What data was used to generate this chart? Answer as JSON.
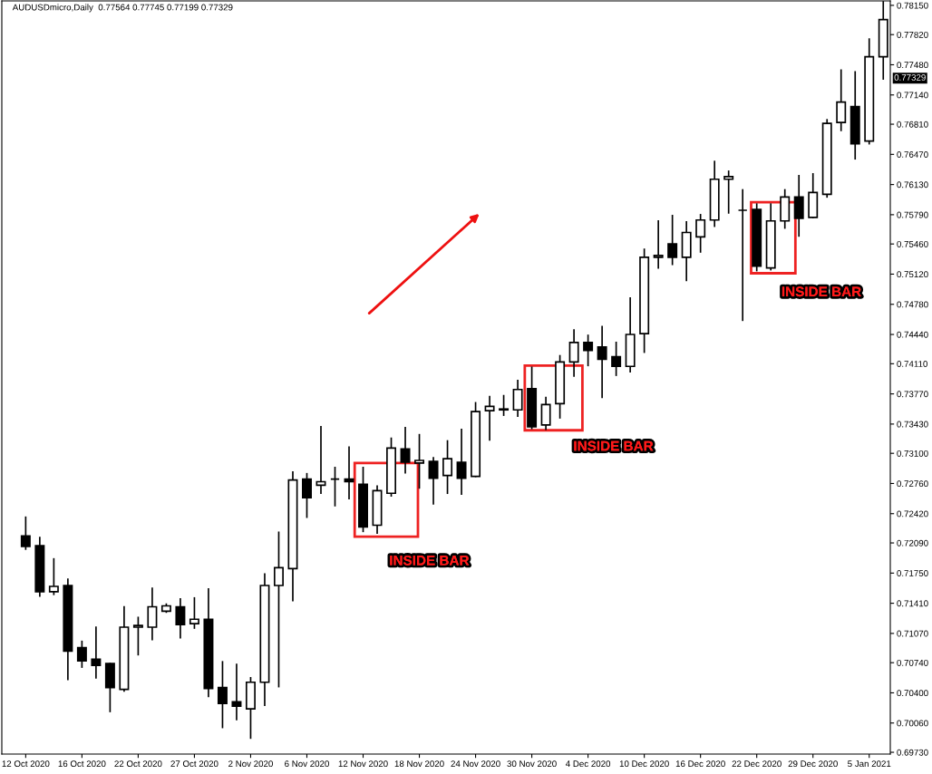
{
  "chart_data": {
    "type": "candlestick",
    "title": "AUDUSDmicro,Daily  0.77564 0.77745 0.77199 0.77329",
    "categories": [
      "12 Oct 2020",
      null,
      null,
      null,
      "16 Oct 2020",
      null,
      null,
      null,
      "22 Oct 2020",
      null,
      null,
      null,
      "27 Oct 2020",
      null,
      null,
      null,
      "2 Nov 2020",
      null,
      null,
      null,
      "6 Nov 2020",
      null,
      null,
      null,
      "12 Nov 2020",
      null,
      null,
      null,
      "18 Nov 2020",
      null,
      null,
      null,
      "24 Nov 2020",
      null,
      null,
      null,
      "30 Nov 2020",
      null,
      null,
      null,
      "4 Dec 2020",
      null,
      null,
      null,
      "10 Dec 2020",
      null,
      null,
      null,
      "16 Dec 2020",
      null,
      null,
      null,
      "22 Dec 2020",
      null,
      null,
      null,
      "29 Dec 2020",
      null,
      null,
      null,
      "5 Jan 2021",
      null
    ],
    "ohlc": [
      [
        0.7217,
        0.7238,
        0.7202,
        0.7205
      ],
      [
        0.7206,
        0.7215,
        0.7149,
        0.7154
      ],
      [
        0.7154,
        0.7191,
        0.7151,
        0.716
      ],
      [
        0.7161,
        0.7168,
        0.7055,
        0.7087
      ],
      [
        0.7091,
        0.7098,
        0.7069,
        0.7076
      ],
      [
        0.7078,
        0.7114,
        0.7057,
        0.7071
      ],
      [
        0.7073,
        0.7073,
        0.7019,
        0.7046
      ],
      [
        0.7044,
        0.7137,
        0.7042,
        0.7114
      ],
      [
        0.7114,
        0.7125,
        0.7083,
        0.7116
      ],
      [
        0.7114,
        0.7158,
        0.71,
        0.7137
      ],
      [
        0.7132,
        0.714,
        0.7131,
        0.7138
      ],
      [
        0.7137,
        0.7146,
        0.7102,
        0.7117
      ],
      [
        0.7118,
        0.7147,
        0.7113,
        0.7123
      ],
      [
        0.7123,
        0.7157,
        0.7036,
        0.7045
      ],
      [
        0.7046,
        0.7075,
        0.7001,
        0.7028
      ],
      [
        0.703,
        0.7072,
        0.701,
        0.7025
      ],
      [
        0.7022,
        0.7057,
        0.6989,
        0.7052
      ],
      [
        0.7052,
        0.7174,
        0.7026,
        0.7161
      ],
      [
        0.7161,
        0.7221,
        0.7047,
        0.7181
      ],
      [
        0.718,
        0.7289,
        0.7144,
        0.728
      ],
      [
        0.7281,
        0.7287,
        0.7238,
        0.726
      ],
      [
        0.7274,
        0.734,
        0.7265,
        0.7278
      ],
      [
        0.7281,
        0.7294,
        0.7251,
        0.7281
      ],
      [
        0.7281,
        0.7317,
        0.7259,
        0.7278
      ],
      [
        0.7275,
        0.7294,
        0.7222,
        0.7227
      ],
      [
        0.7229,
        0.7273,
        0.722,
        0.7268
      ],
      [
        0.7265,
        0.7327,
        0.7262,
        0.7316
      ],
      [
        0.7315,
        0.7339,
        0.7288,
        0.73
      ],
      [
        0.7299,
        0.7331,
        0.7271,
        0.7302
      ],
      [
        0.7301,
        0.7305,
        0.7253,
        0.7282
      ],
      [
        0.7285,
        0.7324,
        0.7265,
        0.7304
      ],
      [
        0.73,
        0.7337,
        0.7264,
        0.7282
      ],
      [
        0.7284,
        0.7367,
        0.7284,
        0.7357
      ],
      [
        0.7358,
        0.7374,
        0.7325,
        0.7363
      ],
      [
        0.736,
        0.7375,
        0.7353,
        0.7359
      ],
      [
        0.7359,
        0.7392,
        0.7352,
        0.7382
      ],
      [
        0.7383,
        0.7407,
        0.7338,
        0.734
      ],
      [
        0.7342,
        0.7373,
        0.7337,
        0.7365
      ],
      [
        0.7366,
        0.742,
        0.735,
        0.7413
      ],
      [
        0.7413,
        0.7449,
        0.7397,
        0.7435
      ],
      [
        0.7435,
        0.7443,
        0.7409,
        0.7426
      ],
      [
        0.743,
        0.7453,
        0.7373,
        0.7416
      ],
      [
        0.7419,
        0.7435,
        0.7398,
        0.7408
      ],
      [
        0.7408,
        0.7485,
        0.7402,
        0.7444
      ],
      [
        0.7445,
        0.754,
        0.7424,
        0.7531
      ],
      [
        0.7531,
        0.7572,
        0.7519,
        0.7533
      ],
      [
        0.7546,
        0.7578,
        0.7523,
        0.7531
      ],
      [
        0.7531,
        0.7571,
        0.7505,
        0.7559
      ],
      [
        0.7554,
        0.7579,
        0.7537,
        0.7573
      ],
      [
        0.7573,
        0.7639,
        0.7566,
        0.7619
      ],
      [
        0.7619,
        0.7628,
        0.7581,
        0.7622
      ],
      [
        0.7584,
        0.7607,
        0.746,
        0.7584
      ],
      [
        0.7585,
        0.7591,
        0.7516,
        0.7521
      ],
      [
        0.7519,
        0.7591,
        0.7517,
        0.7572
      ],
      [
        0.7572,
        0.7607,
        0.7564,
        0.7599
      ],
      [
        0.7599,
        0.7623,
        0.7555,
        0.7575
      ],
      [
        0.7576,
        0.7625,
        0.7576,
        0.7604
      ],
      [
        0.7602,
        0.7686,
        0.7599,
        0.7682
      ],
      [
        0.7683,
        0.7742,
        0.7674,
        0.7706
      ],
      [
        0.7701,
        0.774,
        0.7642,
        0.7659
      ],
      [
        0.7662,
        0.7777,
        0.7659,
        0.7757
      ],
      [
        0.7757,
        0.7819,
        0.7732,
        0.7799
      ]
    ],
    "ylim": [
      0.6971,
      0.782
    ],
    "yticks": [
      {
        "value": 0.7815,
        "label": "0.78150"
      },
      {
        "value": 0.7782,
        "label": "0.77820"
      },
      {
        "value": 0.7748,
        "label": "0.77480"
      },
      {
        "value": 0.7714,
        "label": "0.77140"
      },
      {
        "value": 0.7681,
        "label": "0.76810"
      },
      {
        "value": 0.7647,
        "label": "0.76470"
      },
      {
        "value": 0.7613,
        "label": "0.76130"
      },
      {
        "value": 0.7579,
        "label": "0.75790"
      },
      {
        "value": 0.7546,
        "label": "0.75460"
      },
      {
        "value": 0.7512,
        "label": "0.75120"
      },
      {
        "value": 0.7478,
        "label": "0.74780"
      },
      {
        "value": 0.7444,
        "label": "0.74440"
      },
      {
        "value": 0.7411,
        "label": "0.74110"
      },
      {
        "value": 0.7377,
        "label": "0.73770"
      },
      {
        "value": 0.7343,
        "label": "0.73430"
      },
      {
        "value": 0.731,
        "label": "0.73100"
      },
      {
        "value": 0.7276,
        "label": "0.72760"
      },
      {
        "value": 0.7242,
        "label": "0.72420"
      },
      {
        "value": 0.7209,
        "label": "0.72090"
      },
      {
        "value": 0.7175,
        "label": "0.71750"
      },
      {
        "value": 0.7141,
        "label": "0.71410"
      },
      {
        "value": 0.7107,
        "label": "0.71070"
      },
      {
        "value": 0.7074,
        "label": "0.70740"
      },
      {
        "value": 0.704,
        "label": "0.70400"
      },
      {
        "value": 0.7006,
        "label": "0.70060"
      },
      {
        "value": 0.6973,
        "label": "0.69730"
      }
    ],
    "annotations": [
      {
        "text": "0.77329",
        "y": 0.77329
      },
      "INSIDE BAR",
      "INSIDE BAR",
      "INSIDE BAR"
    ],
    "grid": false,
    "legend": false
  }
}
